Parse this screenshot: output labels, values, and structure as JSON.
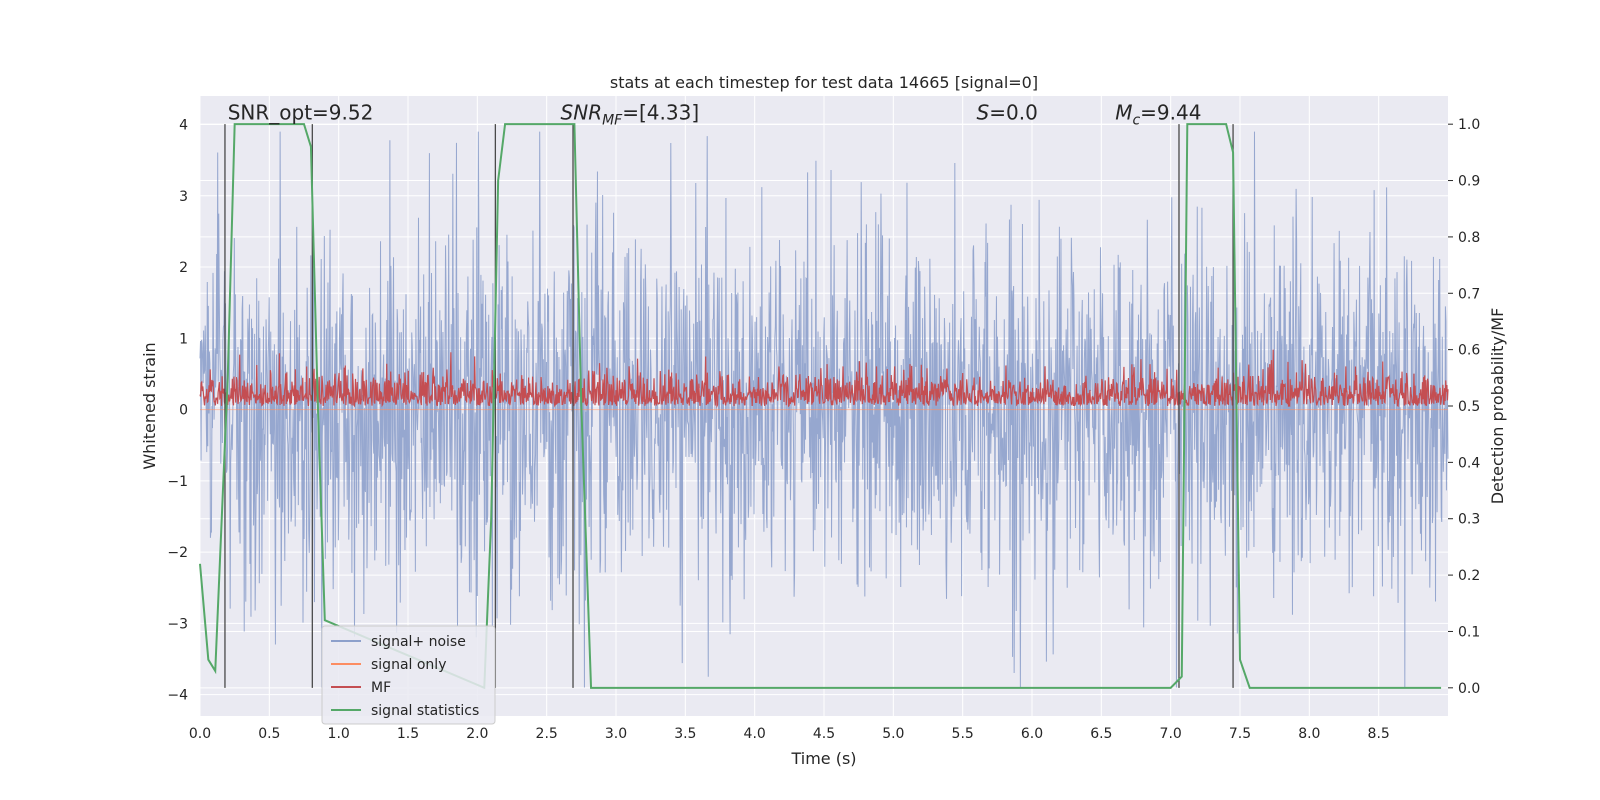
{
  "chart_data": {
    "type": "line",
    "title": "stats at each timestep for test data 14665 [signal=0]",
    "xlabel": "Time (s)",
    "ylabel_left": "Whitened strain",
    "ylabel_right": "Detection probability/MF",
    "xlim": [
      0.0,
      9.0
    ],
    "ylim_left": [
      -4.3,
      4.4
    ],
    "ylim_right": [
      -0.05,
      1.05
    ],
    "x_ticks": [
      "0.0",
      "0.5",
      "1.0",
      "1.5",
      "2.0",
      "2.5",
      "3.0",
      "3.5",
      "4.0",
      "4.5",
      "5.0",
      "5.5",
      "6.0",
      "6.5",
      "7.0",
      "7.5",
      "8.0",
      "8.5"
    ],
    "x_tick_values": [
      0.0,
      0.5,
      1.0,
      1.5,
      2.0,
      2.5,
      3.0,
      3.5,
      4.0,
      4.5,
      5.0,
      5.5,
      6.0,
      6.5,
      7.0,
      7.5,
      8.0,
      8.5
    ],
    "y_ticks_left": [
      "−4",
      "−3",
      "−2",
      "−1",
      "0",
      "1",
      "2",
      "3",
      "4"
    ],
    "y_tick_values_left": [
      -4,
      -3,
      -2,
      -1,
      0,
      1,
      2,
      3,
      4
    ],
    "y_ticks_right": [
      "0.0",
      "0.1",
      "0.2",
      "0.3",
      "0.4",
      "0.5",
      "0.6",
      "0.7",
      "0.8",
      "0.9",
      "1.0"
    ],
    "y_tick_values_right": [
      0.0,
      0.1,
      0.2,
      0.3,
      0.4,
      0.5,
      0.6,
      0.7,
      0.8,
      0.9,
      1.0
    ],
    "grid": true,
    "legend_position": "lower-left",
    "annotations": [
      {
        "text": "SNR_opt=9.52",
        "x": 0.2,
        "y": 4.1
      },
      {
        "text": "SNR_MF=[4.33]",
        "x": 2.6,
        "y": 4.1
      },
      {
        "text": "S=0.0",
        "x": 5.6,
        "y": 4.1
      },
      {
        "text": "M_c=9.44",
        "x": 6.6,
        "y": 4.1
      }
    ],
    "series": [
      {
        "name": "signal+ noise",
        "axis": "left",
        "color": "#8da0cb",
        "description_values": "noise band between about -3.9 and 3.9",
        "envelope": {
          "upper_typical": 2.5,
          "lower_typical": -2.5,
          "max": 3.9,
          "min": -3.9
        }
      },
      {
        "name": "signal only",
        "axis": "left",
        "color": "#fc8d62",
        "values_constant": 0
      },
      {
        "name": "MF",
        "axis": "right",
        "color": "#c44e52",
        "envelope": {
          "low": 0.5,
          "high_typical": 0.56,
          "max": 0.6
        }
      },
      {
        "name": "signal statistics",
        "axis": "right",
        "color": "#55a868",
        "x": [
          0.0,
          0.06,
          0.11,
          0.2,
          0.25,
          0.75,
          0.8,
          0.85,
          0.9,
          2.05,
          2.1,
          2.15,
          2.2,
          2.7,
          2.75,
          2.82,
          2.86,
          7.0,
          7.08,
          7.12,
          7.4,
          7.45,
          7.5,
          7.57,
          8.95
        ],
        "y": [
          0.22,
          0.05,
          0.03,
          0.55,
          1.0,
          1.0,
          0.96,
          0.5,
          0.12,
          0.0,
          0.3,
          0.9,
          1.0,
          1.0,
          0.5,
          0.0,
          0.0,
          0.0,
          0.02,
          1.0,
          1.0,
          0.95,
          0.05,
          0.0,
          0.0
        ]
      }
    ],
    "vertical_lines": [
      0.18,
      0.81,
      2.13,
      2.69,
      7.06,
      7.45
    ],
    "colors": {
      "plot_bg": "#eaeaf2",
      "grid": "#ffffff",
      "vline": "#4a4a4a",
      "legend_border": "#cccccc"
    }
  },
  "legend": {
    "items": [
      "signal+ noise",
      "signal only",
      "MF",
      "signal statistics"
    ]
  }
}
